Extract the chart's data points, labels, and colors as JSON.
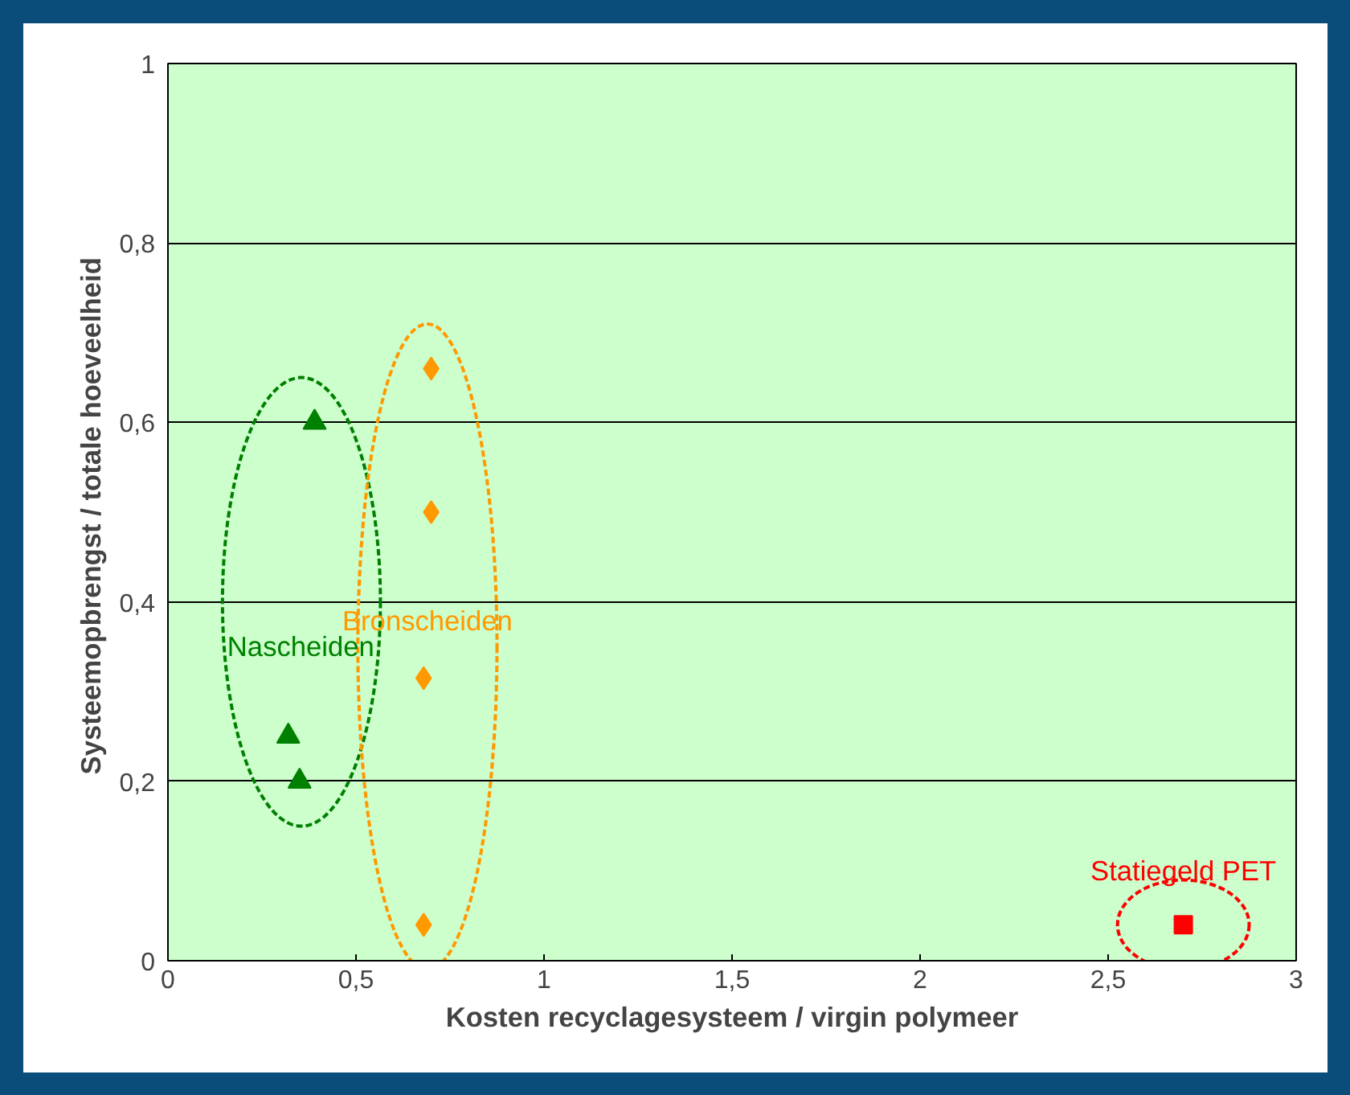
{
  "chart_data": {
    "type": "scatter",
    "xlabel": "Kosten recyclagesysteem / virgin polymeer",
    "ylabel": "Systeemopbrengst  / totale hoeveelheid",
    "series": [
      {
        "name": "Nascheiden",
        "color": "#008000",
        "marker": "triangle",
        "x": [
          0.32,
          0.35,
          0.39
        ],
        "values": [
          0.25,
          0.2,
          0.6
        ]
      },
      {
        "name": "Bronscheiden",
        "color": "#ff9900",
        "marker": "diamond",
        "x": [
          0.7,
          0.7,
          0.68,
          0.68
        ],
        "values": [
          0.66,
          0.5,
          0.315,
          0.04
        ]
      },
      {
        "name": "Statiegeld PET",
        "color": "#ff0000",
        "marker": "square",
        "x": [
          2.7
        ],
        "values": [
          0.04
        ]
      }
    ],
    "xlim": [
      0,
      3
    ],
    "ylim": [
      0,
      1
    ],
    "xticks": [
      0,
      {
        "value": 0.5,
        "label": "0,5"
      },
      1,
      {
        "value": 1.5,
        "label": "1,5"
      },
      2,
      {
        "value": 2.5,
        "label": "2,5"
      },
      3
    ],
    "yticks": [
      0,
      {
        "value": 0.2,
        "label": "0,2"
      },
      {
        "value": 0.4,
        "label": "0,4"
      },
      {
        "value": 0.6,
        "label": "0,6"
      },
      {
        "value": 0.8,
        "label": "0,8"
      },
      1
    ],
    "grid": "y",
    "legend": false
  }
}
